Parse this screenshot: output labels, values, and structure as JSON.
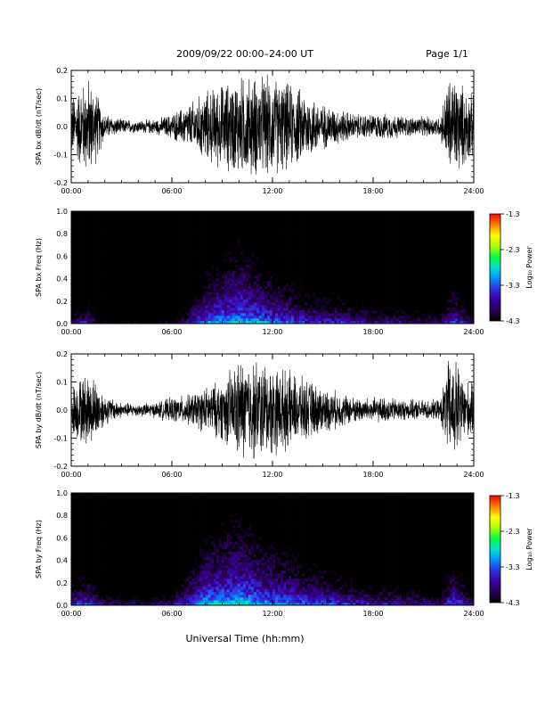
{
  "header": {
    "title": "2009/09/22  00:00–24:00 UT",
    "page": "Page 1/1"
  },
  "footer": {
    "xlabel": "Universal Time (hh:mm)"
  },
  "colors": {
    "waveform": "#000000",
    "colormap": [
      "#000000",
      "#2a0050",
      "#3a00a0",
      "#3030e0",
      "#0090ff",
      "#00e0d0",
      "#00ff40",
      "#b0ff00",
      "#ffff00",
      "#ff8000",
      "#ff0000"
    ]
  },
  "chart_data": [
    {
      "type": "line",
      "ylabel": "SPA bx dB/dt (nT/sec)",
      "xlim": [
        "00:00",
        "24:00"
      ],
      "ylim": [
        -0.2,
        0.2
      ],
      "x_ticks": [
        "00:00",
        "06:00",
        "12:00",
        "18:00",
        "24:00"
      ],
      "y_ticks": [
        "-0.2",
        "-0.1",
        "0.0",
        "0.1",
        "0.2"
      ],
      "x_hours": [
        0,
        1,
        1.5,
        2,
        3,
        4,
        5,
        6,
        7,
        8,
        9,
        10,
        11,
        12,
        13,
        14,
        15,
        16,
        17,
        18,
        19,
        20,
        21,
        22,
        22.5,
        23,
        23.5,
        24
      ],
      "amplitude": [
        0.12,
        0.2,
        0.14,
        0.05,
        0.03,
        0.025,
        0.03,
        0.05,
        0.09,
        0.14,
        0.17,
        0.2,
        0.2,
        0.2,
        0.17,
        0.14,
        0.09,
        0.07,
        0.05,
        0.05,
        0.05,
        0.04,
        0.04,
        0.04,
        0.2,
        0.2,
        0.15,
        0.12
      ]
    },
    {
      "type": "heatmap",
      "ylabel": "SPA bx Freq (Hz)",
      "xlim": [
        "00:00",
        "24:00"
      ],
      "ylim": [
        0.0,
        1.0
      ],
      "x_ticks": [
        "00:00",
        "06:00",
        "12:00",
        "18:00",
        "24:00"
      ],
      "y_ticks": [
        "0.0",
        "0.2",
        "0.4",
        "0.6",
        "0.8",
        "1.0"
      ],
      "colorbar": {
        "label": "Log₁₀ Power",
        "ticks": [
          "-1.3",
          "-2.3",
          "-3.3",
          "-4.3"
        ],
        "range": [
          -4.3,
          -1.3
        ]
      },
      "x_hours": [
        0,
        1,
        2,
        4,
        6,
        8,
        10,
        12,
        14,
        16,
        18,
        20,
        22,
        22.7,
        23.3,
        24
      ],
      "low_freq_log_power": [
        -3.4,
        -3.1,
        -3.8,
        -3.9,
        -3.7,
        -2.6,
        -2.3,
        -2.6,
        -2.9,
        -3.0,
        -3.2,
        -3.3,
        -3.4,
        -2.8,
        -3.0,
        -3.6
      ]
    },
    {
      "type": "line",
      "ylabel": "SPA by dB/dt (nT/sec)",
      "xlim": [
        "00:00",
        "24:00"
      ],
      "ylim": [
        -0.2,
        0.2
      ],
      "x_ticks": [
        "00:00",
        "06:00",
        "12:00",
        "18:00",
        "24:00"
      ],
      "y_ticks": [
        "-0.2",
        "-0.1",
        "0.0",
        "0.1",
        "0.2"
      ],
      "x_hours": [
        0,
        1,
        1.5,
        2,
        3,
        4,
        5,
        6,
        7,
        8,
        9,
        10,
        11,
        12,
        13,
        14,
        15,
        16,
        17,
        18,
        19,
        20,
        21,
        22,
        22.5,
        23,
        23.5,
        24
      ],
      "amplitude": [
        0.1,
        0.15,
        0.12,
        0.06,
        0.03,
        0.025,
        0.03,
        0.05,
        0.06,
        0.09,
        0.12,
        0.2,
        0.2,
        0.18,
        0.15,
        0.12,
        0.09,
        0.07,
        0.05,
        0.05,
        0.05,
        0.04,
        0.04,
        0.04,
        0.2,
        0.2,
        0.12,
        0.1
      ]
    },
    {
      "type": "heatmap",
      "ylabel": "SPA by Freq (Hz)",
      "xlim": [
        "00:00",
        "24:00"
      ],
      "ylim": [
        0.0,
        1.0
      ],
      "x_ticks": [
        "00:00",
        "06:00",
        "12:00",
        "18:00",
        "24:00"
      ],
      "y_ticks": [
        "0.0",
        "0.2",
        "0.4",
        "0.6",
        "0.8",
        "1.0"
      ],
      "colorbar": {
        "label": "Log₁₀ Power",
        "ticks": [
          "-1.3",
          "-2.3",
          "-3.3",
          "-4.3"
        ],
        "range": [
          -4.3,
          -1.3
        ]
      },
      "x_hours": [
        0,
        1,
        2,
        4,
        6,
        8,
        10,
        12,
        14,
        16,
        18,
        20,
        22,
        22.7,
        23.3,
        24
      ],
      "low_freq_log_power": [
        -3.0,
        -2.9,
        -3.4,
        -3.5,
        -3.3,
        -2.4,
        -2.2,
        -2.5,
        -2.7,
        -2.9,
        -3.1,
        -3.2,
        -3.3,
        -2.7,
        -2.9,
        -3.4
      ]
    }
  ]
}
